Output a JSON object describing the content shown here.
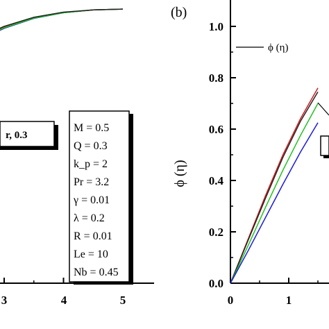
{
  "chart_data": [
    {
      "type": "line",
      "panel": "left (cropped)",
      "xlim": [
        2.7,
        5.5
      ],
      "x_ticks": [
        "3",
        "4",
        "5"
      ],
      "curve_box_label": "r, 0.3",
      "params": [
        "M = 0.5",
        "Q = 0.3",
        "k_p = 2",
        "Pr = 3.2",
        "γ = 0.01",
        "λ = 0.2",
        "R = 0.01",
        "Le = 10",
        "Nb = 0.45"
      ],
      "series": [
        {
          "color": "#1a1adb",
          "x": [
            2.7,
            3.0,
            3.5,
            4.0,
            4.5,
            5.0
          ],
          "y_frac": [
            0.87,
            0.9,
            0.935,
            0.955,
            0.965,
            0.968
          ]
        },
        {
          "color": "#d11a1a",
          "x": [
            2.7,
            3.0,
            3.5,
            4.0,
            4.5,
            5.0
          ],
          "y_frac": [
            0.876,
            0.905,
            0.938,
            0.956,
            0.965,
            0.968
          ]
        },
        {
          "color": "#1fc21f",
          "x": [
            2.7,
            3.0,
            3.5,
            4.0,
            4.5,
            5.0
          ],
          "y_frac": [
            0.873,
            0.902,
            0.936,
            0.955,
            0.965,
            0.968
          ]
        },
        {
          "color": "#222222",
          "x": [
            2.7,
            3.0,
            3.5,
            4.0,
            4.5,
            5.0
          ],
          "y_frac": [
            0.879,
            0.907,
            0.939,
            0.957,
            0.965,
            0.968
          ]
        }
      ]
    },
    {
      "type": "line",
      "panel_label": "(b)",
      "ylabel": "ϕ (η)",
      "legend": "ϕ (η)",
      "ylim": [
        0,
        1.1
      ],
      "y_ticks": [
        "0.0",
        "0.2",
        "0.4",
        "0.6",
        "0.8",
        "1.0"
      ],
      "x_ticks": [
        "0",
        "1"
      ],
      "xlim": [
        0,
        1.55
      ],
      "series": [
        {
          "color": "#d11a1a",
          "x": [
            0,
            0.3,
            0.6,
            0.9,
            1.2,
            1.5
          ],
          "y": [
            0,
            0.17,
            0.34,
            0.5,
            0.64,
            0.76
          ]
        },
        {
          "color": "#222222",
          "x": [
            0,
            0.3,
            0.6,
            0.9,
            1.2,
            1.5
          ],
          "y": [
            0,
            0.165,
            0.33,
            0.49,
            0.63,
            0.745
          ]
        },
        {
          "color": "#1fc21f",
          "x": [
            0,
            0.3,
            0.6,
            0.9,
            1.2,
            1.5
          ],
          "y": [
            0,
            0.145,
            0.295,
            0.44,
            0.575,
            0.7
          ]
        },
        {
          "color": "#1a1adb",
          "x": [
            0,
            0.3,
            0.6,
            0.9,
            1.2,
            1.5
          ],
          "y": [
            0,
            0.125,
            0.255,
            0.385,
            0.51,
            0.625
          ]
        }
      ]
    }
  ]
}
